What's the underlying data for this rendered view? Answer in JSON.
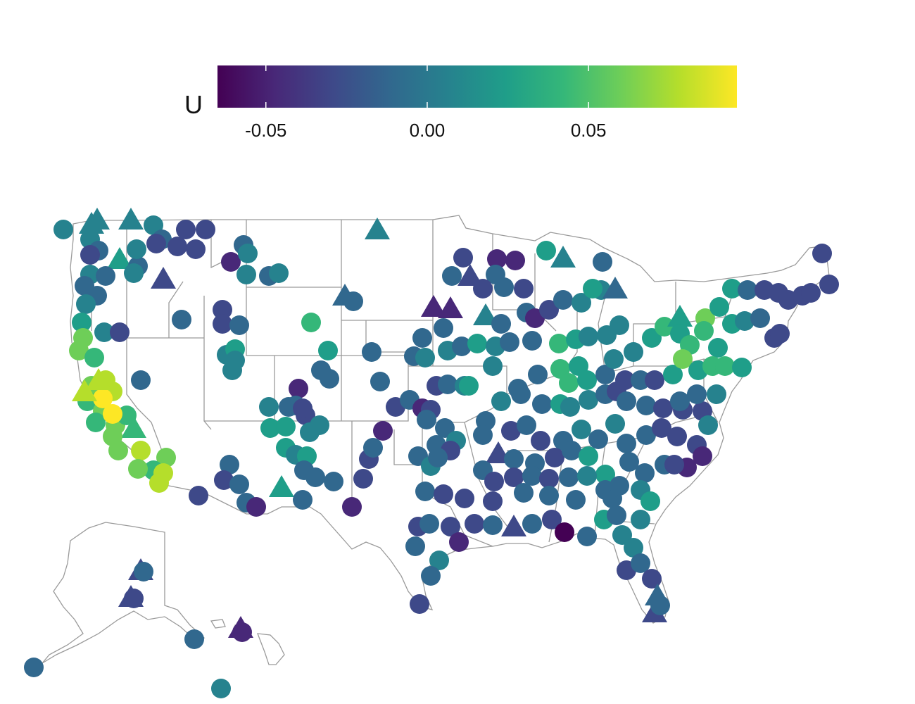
{
  "legend": {
    "title": "U",
    "min": -0.065,
    "max": 0.096,
    "ticks": [
      {
        "value": -0.05,
        "label": "-0.05"
      },
      {
        "value": 0.0,
        "label": "0.00"
      },
      {
        "value": 0.05,
        "label": "0.05"
      }
    ],
    "colormap": "viridis"
  },
  "map": {
    "projection": "contiguous United States with Alaska and Hawaii insets",
    "state_border_color": "#9a9a9a",
    "background": "#ffffff",
    "marker_shapes": [
      "circle",
      "triangle"
    ]
  },
  "colors": {
    "viridis": [
      "#440154",
      "#482878",
      "#3e4989",
      "#31688e",
      "#26828e",
      "#1f9e89",
      "#35b779",
      "#6ece58",
      "#b5de2b",
      "#fde725"
    ]
  }
}
